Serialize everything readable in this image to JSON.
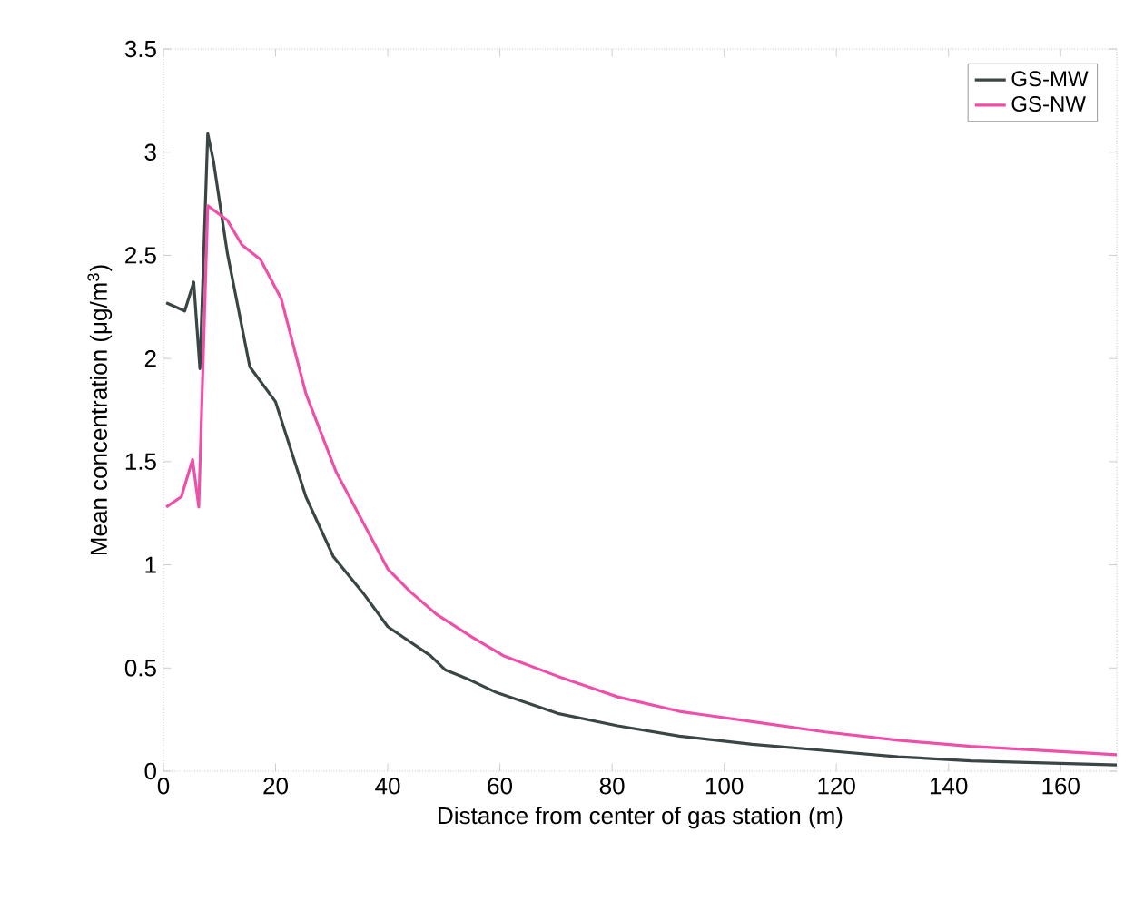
{
  "chart_data": {
    "type": "line",
    "xlabel": "Distance from center of gas station  (m)",
    "ylabel": "Mean concentration  (μg/m$^{3}$)",
    "xlim": [
      0,
      170
    ],
    "ylim": [
      0,
      3.5
    ],
    "xticks": [
      0,
      20,
      40,
      60,
      80,
      100,
      120,
      140,
      160
    ],
    "yticks": [
      0,
      0.5,
      1,
      1.5,
      2,
      2.5,
      3,
      3.5
    ],
    "grid": false,
    "legend": "top right",
    "marker": "none",
    "line_style": "solid",
    "series": [
      {
        "name": "GS-MW",
        "color": "#3a4545",
        "x": [
          0.5,
          3.8,
          5.4,
          6.5,
          7.9,
          8.9,
          11.4,
          15.4,
          20,
          25.4,
          30.3,
          35.7,
          40,
          47.6,
          50.3,
          54,
          59.5,
          70.3,
          81,
          92,
          105,
          118,
          131,
          144,
          170
        ],
        "values": [
          2.27,
          2.23,
          2.37,
          1.95,
          3.09,
          2.96,
          2.51,
          1.96,
          1.79,
          1.33,
          1.04,
          0.86,
          0.7,
          0.56,
          0.49,
          0.45,
          0.38,
          0.28,
          0.22,
          0.17,
          0.13,
          0.1,
          0.07,
          0.05,
          0.03
        ]
      },
      {
        "name": "GS-NW",
        "color": "#ee4fa8",
        "x": [
          0.5,
          3.2,
          5.2,
          6.3,
          7.9,
          11.4,
          14,
          17.3,
          21,
          25.4,
          30.8,
          35.7,
          40,
          44,
          48.7,
          55,
          60.6,
          70.3,
          81,
          92,
          105,
          118,
          131,
          144,
          170
        ],
        "values": [
          1.28,
          1.33,
          1.51,
          1.28,
          2.74,
          2.67,
          2.55,
          2.48,
          2.29,
          1.83,
          1.45,
          1.2,
          0.98,
          0.87,
          0.76,
          0.65,
          0.56,
          0.46,
          0.36,
          0.29,
          0.24,
          0.19,
          0.15,
          0.12,
          0.08
        ]
      }
    ]
  }
}
